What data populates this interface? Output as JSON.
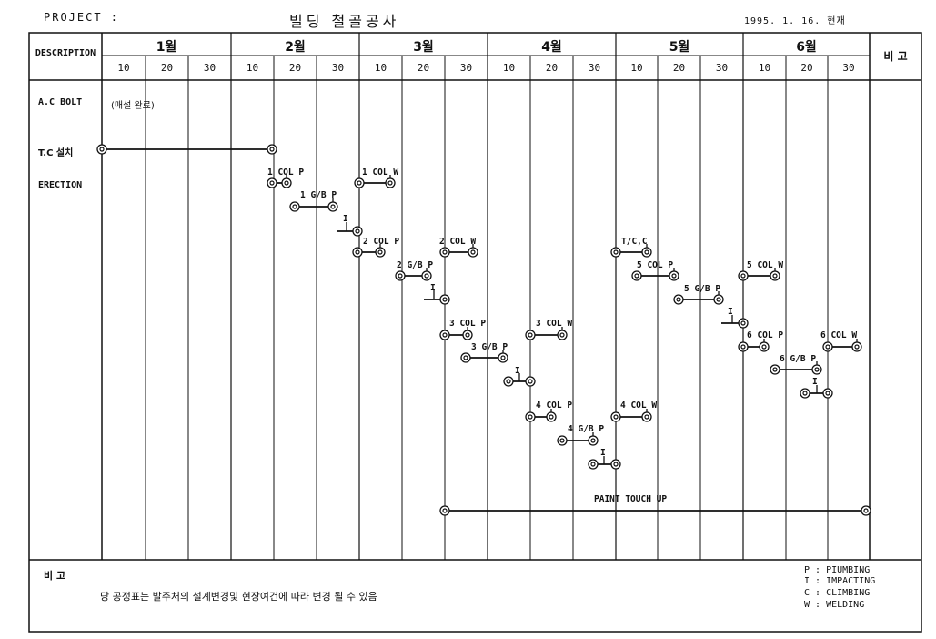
{
  "header": {
    "project_label": "PROJECT   :",
    "title": "빌딩 철골공사",
    "date": "1995.  1. 16. 현재"
  },
  "table": {
    "description_header": "DESCRIPTION",
    "remarks_header": "비  고",
    "months": [
      "1월",
      "2월",
      "3월",
      "4월",
      "5월",
      "6월"
    ],
    "days": [
      "10",
      "20",
      "30"
    ]
  },
  "rows": {
    "ac_bolt": "A.C BOLT",
    "ac_bolt_note": "(매설 완료)",
    "tc": "T.C 설치",
    "erection": "ERECTION"
  },
  "activities": [
    "1 COL  P",
    "1 G/B P",
    "I",
    "1 COL W",
    "2 COL  P",
    "2 G/B P",
    "I",
    "2 COL W",
    "3 COL P",
    "3 G/B P",
    "I",
    "3 COL W",
    "4 COL P",
    "4 G/B P",
    "I",
    "4 COL W",
    "T/C,C",
    "5 COL P",
    "5 G/B P",
    "I",
    "5 COL W",
    "6 COL P",
    "6 G/B P",
    "I",
    "6 COL W",
    "PAINT TOUCH UP"
  ],
  "footer": {
    "remarks_label": "비    고",
    "remark_text": "당 공정표는 발주처의 설계변경및 현장여건에 따라 변경 될 수 있음",
    "legend": [
      "P : PIUMBING",
      "I : IMPACTING",
      "C : CLIMBING",
      "W : WELDING"
    ]
  }
}
